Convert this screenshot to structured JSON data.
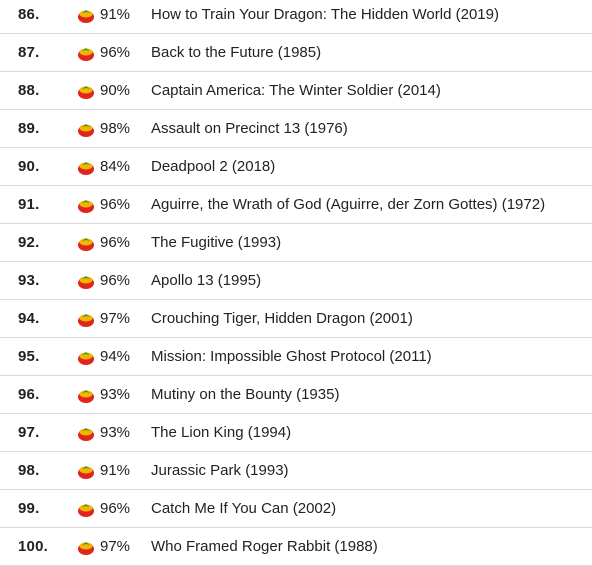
{
  "icon": "tomato-fresh-icon",
  "colors": {
    "tomato_red": "#e0261c",
    "tomato_yellow": "#f5b400",
    "leaf_green": "#2f9e3a",
    "divider": "#d9d9d9"
  },
  "items": [
    {
      "rank": "86.",
      "score": "91%",
      "title": "How to Train Your Dragon: The Hidden World (2019)"
    },
    {
      "rank": "87.",
      "score": "96%",
      "title": "Back to the Future (1985)"
    },
    {
      "rank": "88.",
      "score": "90%",
      "title": "Captain America: The Winter Soldier (2014)"
    },
    {
      "rank": "89.",
      "score": "98%",
      "title": "Assault on Precinct 13 (1976)"
    },
    {
      "rank": "90.",
      "score": "84%",
      "title": "Deadpool 2 (2018)"
    },
    {
      "rank": "91.",
      "score": "96%",
      "title": "Aguirre, the Wrath of God (Aguirre, der Zorn Gottes) (1972)"
    },
    {
      "rank": "92.",
      "score": "96%",
      "title": "The Fugitive (1993)"
    },
    {
      "rank": "93.",
      "score": "96%",
      "title": "Apollo 13 (1995)"
    },
    {
      "rank": "94.",
      "score": "97%",
      "title": "Crouching Tiger, Hidden Dragon (2001)"
    },
    {
      "rank": "95.",
      "score": "94%",
      "title": "Mission: Impossible Ghost Protocol (2011)"
    },
    {
      "rank": "96.",
      "score": "93%",
      "title": "Mutiny on the Bounty (1935)"
    },
    {
      "rank": "97.",
      "score": "93%",
      "title": "The Lion King (1994)"
    },
    {
      "rank": "98.",
      "score": "91%",
      "title": "Jurassic Park (1993)"
    },
    {
      "rank": "99.",
      "score": "96%",
      "title": "Catch Me If You Can (2002)"
    },
    {
      "rank": "100.",
      "score": "97%",
      "title": "Who Framed Roger Rabbit (1988)"
    }
  ]
}
